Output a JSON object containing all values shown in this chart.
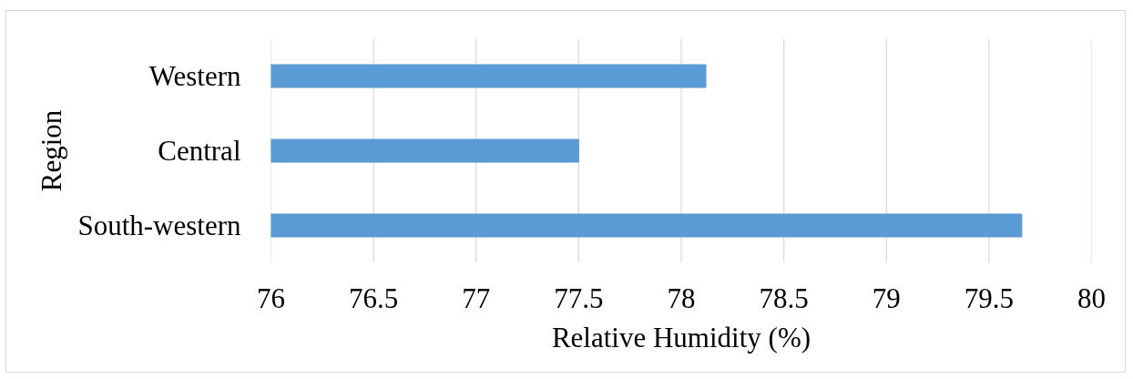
{
  "chart_data": {
    "type": "bar",
    "orientation": "horizontal",
    "categories": [
      "Western",
      "Central",
      "South-western"
    ],
    "values": [
      78.12,
      77.5,
      79.66
    ],
    "color": "#5b9bd5",
    "xlabel": "Relative Humidity (%)",
    "ylabel": "Region",
    "xlim": [
      76,
      80
    ],
    "xticks": [
      76,
      76.5,
      77,
      77.5,
      78,
      78.5,
      79,
      79.5,
      80
    ],
    "grid": "x"
  }
}
